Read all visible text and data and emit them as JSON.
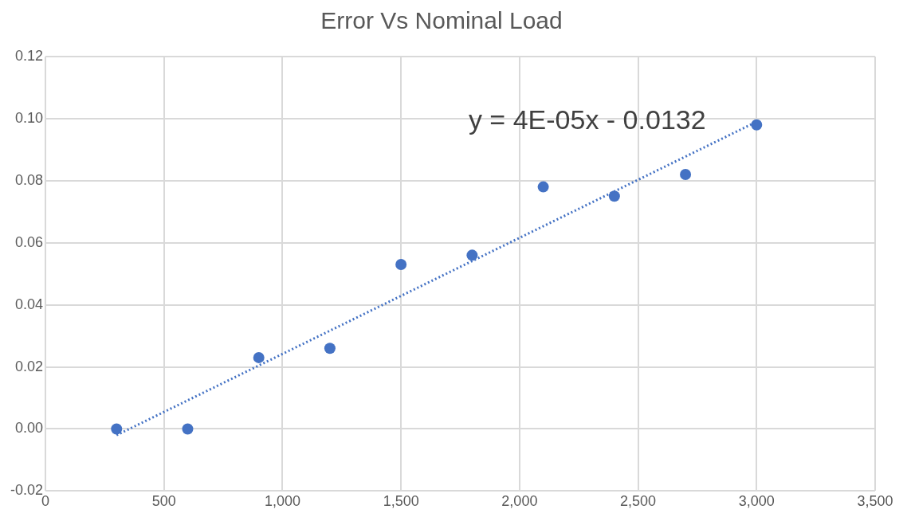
{
  "chart_data": {
    "type": "scatter",
    "title": "Error Vs Nominal Load",
    "x": [
      300,
      600,
      900,
      1200,
      1500,
      1800,
      2100,
      2400,
      2700,
      3000
    ],
    "series": [
      {
        "color": "#4472c4",
        "values": [
          0.0,
          0.0,
          0.023,
          0.026,
          0.053,
          0.056,
          0.078,
          0.075,
          0.082,
          0.098
        ],
        "marker": "circle"
      },
      {
        "type": "line",
        "color": "#4472c4",
        "x": [
          300,
          3000
        ],
        "values": [
          -0.002,
          0.099
        ],
        "line_style": "dotted",
        "marker": "none"
      }
    ],
    "xlim": [
      0,
      3500
    ],
    "xticks": [
      {
        "value": 0,
        "label": "0"
      },
      {
        "value": 500,
        "label": "500"
      },
      {
        "value": 1000,
        "label": "1,000"
      },
      {
        "value": 1500,
        "label": "1,500"
      },
      {
        "value": 2000,
        "label": "2,000"
      },
      {
        "value": 2500,
        "label": "2,500"
      },
      {
        "value": 3000,
        "label": "3,000"
      },
      {
        "value": 3500,
        "label": "3,500"
      }
    ],
    "ylim": [
      -0.02,
      0.12
    ],
    "yticks": [
      {
        "value": -0.02,
        "label": "-0.02"
      },
      {
        "value": 0,
        "label": "0.00"
      },
      {
        "value": 0.02,
        "label": "0.02"
      },
      {
        "value": 0.04,
        "label": "0.04"
      },
      {
        "value": 0.06,
        "label": "0.06"
      },
      {
        "value": 0.08,
        "label": "0.08"
      },
      {
        "value": 0.1,
        "label": "0.10"
      },
      {
        "value": 0.12,
        "label": "0.12"
      }
    ],
    "grid": true,
    "legend": false,
    "annotations": [
      "y = 4E-05x - 0.0132"
    ]
  }
}
